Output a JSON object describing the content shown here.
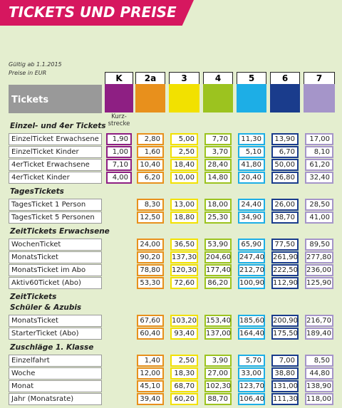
{
  "header": {
    "title": "TICKETS UND PREISE",
    "valid_from": "Gültig ab 1.1.2015",
    "currency_note": "Preise in EUR"
  },
  "table": {
    "row_header": "Tickets",
    "column_note": [
      "Kurz-",
      "strecke"
    ],
    "columns": [
      {
        "label": "K",
        "color": "#8e1f83"
      },
      {
        "label": "2a",
        "color": "#e8901c"
      },
      {
        "label": "3",
        "color": "#f2e100"
      },
      {
        "label": "4",
        "color": "#9cc31f"
      },
      {
        "label": "5",
        "color": "#1daee6"
      },
      {
        "label": "6",
        "color": "#1a3c8c"
      },
      {
        "label": "7",
        "color": "#a595c9"
      }
    ],
    "sections": [
      {
        "title": [
          "Einzel- und 4er Tickets"
        ],
        "rows": [
          {
            "label": "EinzelTicket Erwachsene",
            "values": [
              "1,90",
              "2,80",
              "5,00",
              "7,70",
              "11,30",
              "13,90",
              "17,00"
            ]
          },
          {
            "label": "EinzelTicket Kinder",
            "values": [
              "1,00",
              "1,60",
              "2,50",
              "3,70",
              "5,10",
              "6,70",
              "8,10"
            ]
          },
          {
            "label": "4erTicket Erwachsene",
            "values": [
              "7,10",
              "10,40",
              "18,40",
              "28,40",
              "41,80",
              "50,00",
              "61,20"
            ]
          },
          {
            "label": "4erTicket Kinder",
            "values": [
              "4,00",
              "6,20",
              "10,00",
              "14,80",
              "20,40",
              "26,80",
              "32,40"
            ]
          }
        ]
      },
      {
        "title": [
          "TagesTickets"
        ],
        "rows": [
          {
            "label": "TagesTicket 1 Person",
            "values": [
              null,
              "8,30",
              "13,00",
              "18,00",
              "24,40",
              "26,00",
              "28,50"
            ]
          },
          {
            "label": "TagesTicket 5 Personen",
            "values": [
              null,
              "12,50",
              "18,80",
              "25,30",
              "34,90",
              "38,70",
              "41,00"
            ]
          }
        ]
      },
      {
        "title": [
          "ZeitTickets Erwachsene"
        ],
        "rows": [
          {
            "label": "WochenTicket",
            "values": [
              null,
              "24,00",
              "36,50",
              "53,90",
              "65,90",
              "77,50",
              "89,50"
            ]
          },
          {
            "label": "MonatsTicket",
            "values": [
              null,
              "90,20",
              "137,30",
              "204,60",
              "247,40",
              "261,90",
              "277,80"
            ]
          },
          {
            "label": "MonatsTicket im Abo",
            "values": [
              null,
              "78,80",
              "120,30",
              "177,40",
              "212,70",
              "222,50",
              "236,00"
            ]
          },
          {
            "label": "Aktiv60Ticket (Abo)",
            "values": [
              null,
              "53,30",
              "72,60",
              "86,20",
              "100,90",
              "112,90",
              "125,90"
            ]
          }
        ]
      },
      {
        "title": [
          "ZeitTickets",
          "Schüler & Azubis"
        ],
        "rows": [
          {
            "label": "MonatsTicket",
            "values": [
              null,
              "67,60",
              "103,20",
              "153,40",
              "185,60",
              "200,90",
              "216,70"
            ]
          },
          {
            "label": "StarterTicket (Abo)",
            "values": [
              null,
              "60,40",
              "93,40",
              "137,00",
              "164,40",
              "175,50",
              "189,40"
            ]
          }
        ]
      },
      {
        "title": [
          "Zuschläge 1. Klasse"
        ],
        "rows": [
          {
            "label": "Einzelfahrt",
            "values": [
              null,
              "1,40",
              "2,50",
              "3,90",
              "5,70",
              "7,00",
              "8,50"
            ]
          },
          {
            "label": "Woche",
            "values": [
              null,
              "12,00",
              "18,30",
              "27,00",
              "33,00",
              "38,80",
              "44,80"
            ]
          },
          {
            "label": "Monat",
            "values": [
              null,
              "45,10",
              "68,70",
              "102,30",
              "123,70",
              "131,00",
              "138,90"
            ]
          },
          {
            "label": "Jahr (Monatsrate)",
            "values": [
              null,
              "39,40",
              "60,20",
              "88,70",
              "106,40",
              "111,30",
              "118,00"
            ]
          }
        ]
      }
    ]
  }
}
